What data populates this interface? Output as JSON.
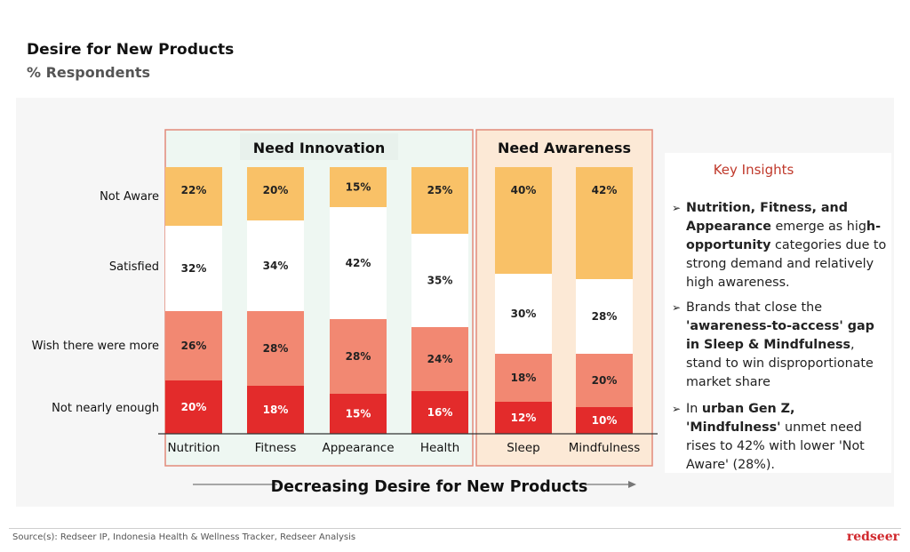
{
  "header": {
    "title": "Desire for New Products",
    "subtitle": "% Respondents"
  },
  "chart_data": {
    "type": "bar",
    "stacked": true,
    "categories": [
      "Nutrition",
      "Fitness",
      "Appearance",
      "Health",
      "Sleep",
      "Mindfulness"
    ],
    "series": [
      {
        "name": "Not nearly enough",
        "values": [
          20,
          18,
          15,
          16,
          12,
          10
        ],
        "color": "#e32b2b"
      },
      {
        "name": "Wish there were more",
        "values": [
          26,
          28,
          28,
          24,
          18,
          20
        ],
        "color": "#f28872"
      },
      {
        "name": "Satisfied",
        "values": [
          32,
          34,
          42,
          35,
          30,
          28
        ],
        "color": "#ffffff"
      },
      {
        "name": "Not Aware",
        "values": [
          22,
          20,
          15,
          25,
          40,
          42
        ],
        "color": "#f9c167"
      }
    ],
    "groups": [
      {
        "label": "Need Innovation",
        "categories": [
          "Nutrition",
          "Fitness",
          "Appearance",
          "Health"
        ]
      },
      {
        "label": "Need Awareness",
        "categories": [
          "Sleep",
          "Mindfulness"
        ]
      }
    ],
    "xlabel": "Decreasing Desire for New Products",
    "ylim": [
      0,
      100
    ]
  },
  "insights": {
    "title": "Key Insights",
    "items": [
      {
        "parts": [
          {
            "text": "Nutrition, Fitness, and Appearance",
            "bold": true
          },
          {
            "text": " emerge as hig",
            "bold": false
          },
          {
            "text": "h-opportunity",
            "bold": true
          },
          {
            "text": " categories due to strong demand and relatively high awareness.",
            "bold": false
          }
        ]
      },
      {
        "parts": [
          {
            "text": "Brands that close the ",
            "bold": false
          },
          {
            "text": "'awareness-to-access' gap in Sleep & Mindfulness",
            "bold": true
          },
          {
            "text": ", stand to win disproportionate market share",
            "bold": false
          }
        ]
      },
      {
        "parts": [
          {
            "text": "In ",
            "bold": false
          },
          {
            "text": "urban Gen Z, 'Mindfulness'",
            "bold": true
          },
          {
            "text": " unmet need rises to 42% with lower 'Not Aware' (28%).",
            "bold": false
          }
        ]
      }
    ]
  },
  "footer": {
    "source": "Source(s): Redseer IP, Indonesia Health & Wellness Tracker, Redseer Analysis",
    "brand": "redseer"
  }
}
